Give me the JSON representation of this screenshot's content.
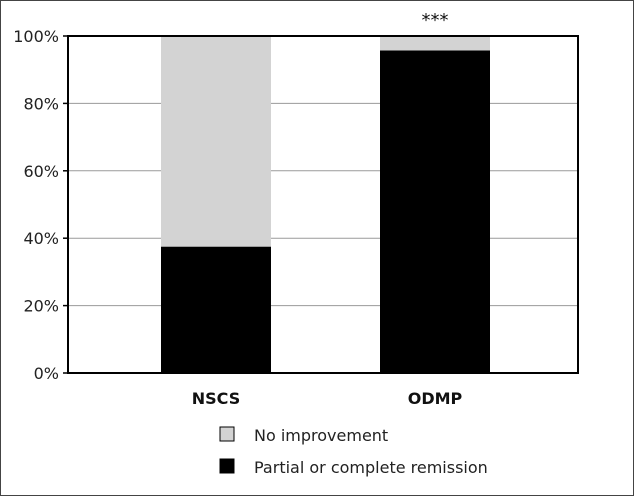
{
  "chart_data": {
    "type": "bar",
    "stacked": true,
    "categories": [
      "NSCS",
      "ODMP"
    ],
    "series": [
      {
        "name": "Partial or complete remission",
        "values": [
          37.5,
          95.7
        ],
        "color": "#000000"
      },
      {
        "name": "No improvement",
        "values": [
          62.5,
          4.3
        ],
        "color": "#d3d3d3"
      }
    ],
    "ylim": [
      0,
      100
    ],
    "yticks": [
      0,
      20,
      40,
      60,
      80,
      100
    ],
    "ytick_labels": [
      "0%",
      "20%",
      "40%",
      "60%",
      "80%",
      "100%"
    ],
    "grid": "horizontal",
    "annotations": [
      {
        "category": "ODMP",
        "text": "***"
      }
    ],
    "legend": {
      "placement": "bottom",
      "entries": [
        {
          "label": "No improvement",
          "color": "#d3d3d3"
        },
        {
          "label": "Partial or complete remission",
          "color": "#000000"
        }
      ]
    }
  }
}
